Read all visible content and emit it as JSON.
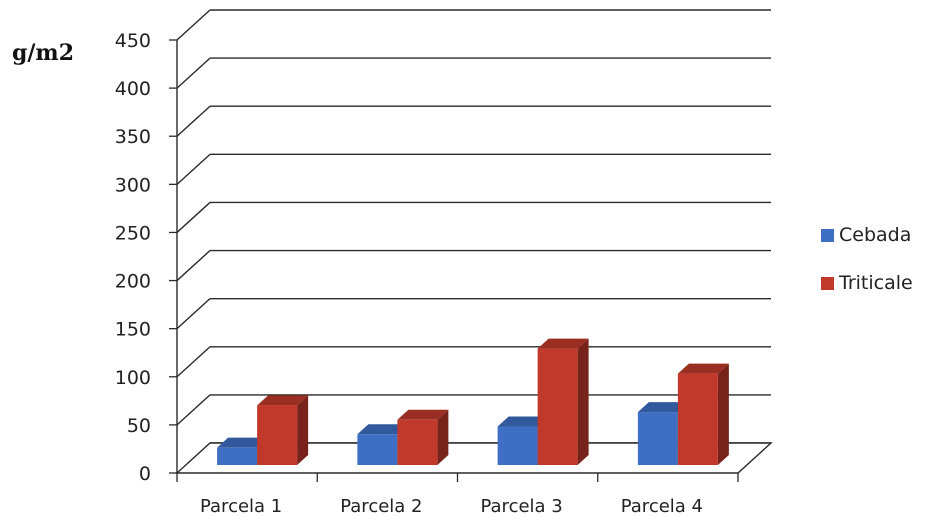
{
  "chart_data": {
    "type": "bar",
    "style": "3d-clustered-column",
    "ylabel": "g/m2",
    "xlabel": "",
    "ylim": [
      0,
      450
    ],
    "yticks": [
      0,
      50,
      100,
      150,
      200,
      250,
      300,
      350,
      400,
      450
    ],
    "grid": true,
    "legend_position": "right",
    "categories": [
      "Parcela 1",
      "Parcela 2",
      "Parcela 3",
      "Parcela 4"
    ],
    "series": [
      {
        "name": "Cebada",
        "values": [
          18,
          32,
          40,
          55
        ],
        "color": "#3f6fc4"
      },
      {
        "name": "Triticale",
        "values": [
          62,
          47,
          121,
          95
        ],
        "color": "#c0392b"
      }
    ]
  }
}
